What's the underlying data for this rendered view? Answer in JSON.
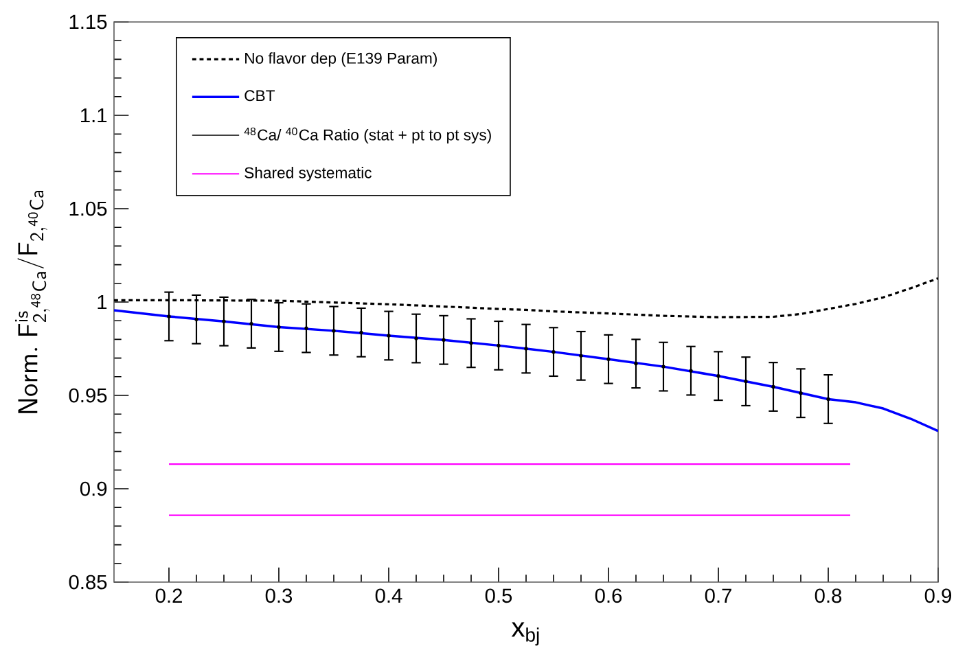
{
  "chart_data": {
    "type": "line",
    "xlabel": "x$_{bj}$",
    "ylabel": "\\mathsf{Norm.\\ F^{is}_{2,{}^{48}Ca}/F_{2,{}^{40}Ca}}",
    "xlim": [
      0.15,
      0.9
    ],
    "ylim": [
      0.85,
      1.15
    ],
    "xticks": [
      0.2,
      0.3,
      0.4,
      0.5,
      0.6,
      0.7,
      0.8,
      0.9
    ],
    "yticks": [
      0.85,
      0.9,
      0.95,
      1,
      1.05,
      1.1,
      1.15
    ],
    "legend": "top left",
    "series": [
      {
        "name": "No flavor dep (E139 Param)",
        "line_style": "dashed",
        "color": "#000000",
        "x": [
          0.15,
          0.2,
          0.3,
          0.4,
          0.45,
          0.5,
          0.525,
          0.55,
          0.6,
          0.65,
          0.7,
          0.75,
          0.775,
          0.8,
          0.825,
          0.85,
          0.875,
          0.9
        ],
        "values": [
          1.001,
          1.001,
          1.0007,
          0.9988,
          0.9976,
          0.9963,
          0.9958,
          0.995,
          0.9939,
          0.9926,
          0.9919,
          0.9921,
          0.9936,
          0.9963,
          0.999,
          1.0025,
          1.0074,
          1.0127
        ]
      },
      {
        "name": "CBT",
        "line_style": "solid",
        "color": "#0000ff",
        "x": [
          0.15,
          0.2,
          0.25,
          0.3,
          0.35,
          0.4,
          0.45,
          0.5,
          0.55,
          0.6,
          0.65,
          0.7,
          0.75,
          0.8,
          0.825,
          0.85,
          0.875,
          0.9
        ],
        "values": [
          0.9956,
          0.9923,
          0.9896,
          0.9866,
          0.9846,
          0.982,
          0.9797,
          0.9767,
          0.9733,
          0.9694,
          0.9654,
          0.9604,
          0.9546,
          0.948,
          0.9463,
          0.943,
          0.9375,
          0.9309
        ]
      },
      {
        "name": "$^{48}$Ca/ $^{40}$Ca Ratio (stat + pt to pt sys)",
        "type": "scatter",
        "color": "#000000",
        "x": [
          0.2,
          0.225,
          0.25,
          0.275,
          0.3,
          0.325,
          0.35,
          0.375,
          0.4,
          0.425,
          0.45,
          0.475,
          0.5,
          0.525,
          0.55,
          0.575,
          0.6,
          0.625,
          0.65,
          0.675,
          0.7,
          0.725,
          0.75,
          0.775,
          0.8
        ],
        "values": [
          0.9923,
          0.9907,
          0.9896,
          0.9884,
          0.9866,
          0.986,
          0.9846,
          0.9837,
          0.982,
          0.9805,
          0.9797,
          0.978,
          0.9767,
          0.975,
          0.9733,
          0.9712,
          0.9694,
          0.967,
          0.9654,
          0.9632,
          0.9604,
          0.9575,
          0.9546,
          0.9512,
          0.948
        ],
        "errors": [
          0.013,
          0.013,
          0.013,
          0.013,
          0.013,
          0.013,
          0.013,
          0.013,
          0.013,
          0.013,
          0.013,
          0.013,
          0.013,
          0.013,
          0.013,
          0.013,
          0.013,
          0.013,
          0.013,
          0.013,
          0.013,
          0.013,
          0.013,
          0.013,
          0.013
        ]
      },
      {
        "name": "Shared systematic",
        "line_style": "solid",
        "color": "#ff00ff",
        "x": [
          0.2,
          0.82
        ],
        "values": [
          0.9132,
          0.9132
        ]
      },
      {
        "line_style": "solid",
        "color": "#ff00ff",
        "x": [
          0.2,
          0.82
        ],
        "values": [
          0.8858,
          0.8858
        ]
      }
    ]
  }
}
